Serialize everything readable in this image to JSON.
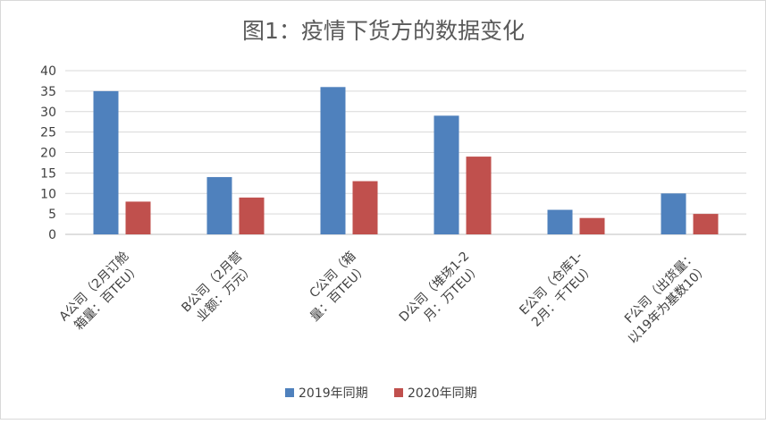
{
  "chart_data": {
    "type": "bar",
    "title": "图1：疫情下货方的数据变化",
    "categories": [
      {
        "line1": "A公司（2月订舱",
        "line2": "箱量：百TEU）"
      },
      {
        "line1": "B公司（2月营",
        "line2": "业额：万元）"
      },
      {
        "line1": "C公司（箱",
        "line2": "量：百TEU）"
      },
      {
        "line1": "D公司（堆场1-2",
        "line2": "月：万TEU）"
      },
      {
        "line1": "E公司（仓库1-",
        "line2": "2月：千TEU）"
      },
      {
        "line1": "F公司（出货量：",
        "line2": "以19年为基数10）"
      }
    ],
    "series": [
      {
        "name": "2019年同期",
        "color": "#4f81bd",
        "values": [
          35,
          14,
          36,
          29,
          6,
          10
        ]
      },
      {
        "name": "2020年同期",
        "color": "#c0504d",
        "values": [
          8,
          9,
          13,
          19,
          4,
          5
        ]
      }
    ],
    "yticks": [
      0,
      5,
      10,
      15,
      20,
      25,
      30,
      35,
      40
    ],
    "ylim": [
      0,
      40
    ],
    "xlabel": "",
    "ylabel": "",
    "grid": true,
    "legend": "bottom",
    "colors": {
      "grid": "#d9d9d9",
      "axis": "#bfbfbf",
      "title": "#595959",
      "tick": "#404040"
    }
  }
}
